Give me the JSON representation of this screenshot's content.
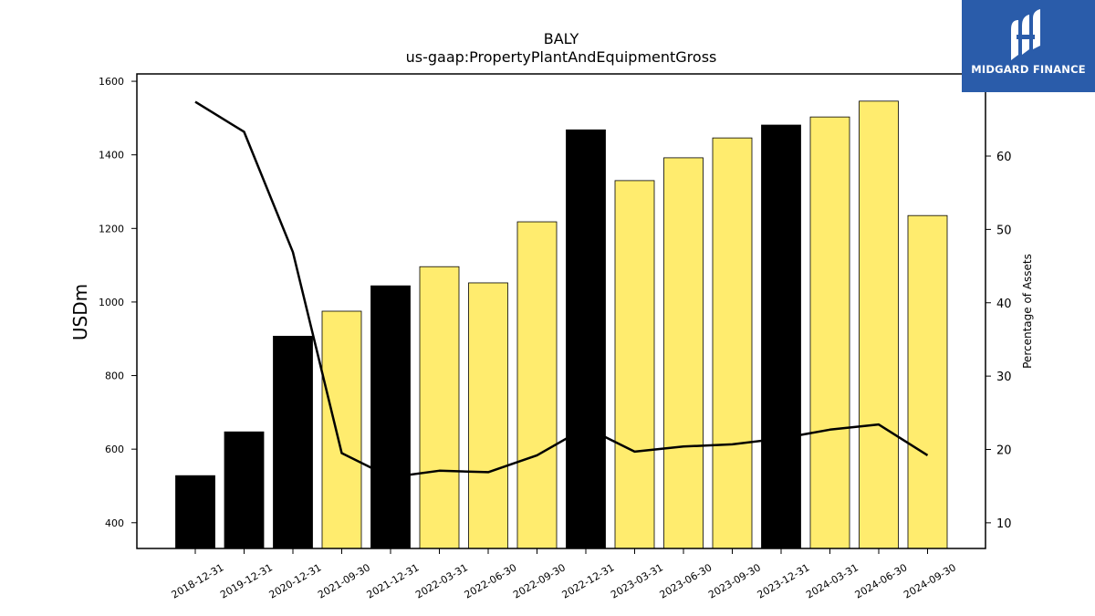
{
  "chart_data": {
    "type": "bar",
    "title": "BALY",
    "subtitle": "us-gaap:PropertyPlantAndEquipmentGross",
    "ylabel": "USDm",
    "y2label": "Percentage of Assets",
    "categories": [
      "2018-12-31",
      "2019-12-31",
      "2020-12-31",
      "2021-09-30",
      "2021-12-31",
      "2022-03-31",
      "2022-06-30",
      "2022-09-30",
      "2022-12-31",
      "2023-03-31",
      "2023-06-30",
      "2023-09-30",
      "2023-12-31",
      "2024-03-31",
      "2024-06-30",
      "2024-09-30"
    ],
    "series": [
      {
        "values": [
          528,
          647,
          907,
          975,
          1044,
          1096,
          1052,
          1218,
          1468,
          1330,
          1392,
          1446,
          1481,
          1503,
          1546,
          1235
        ]
      },
      {
        "axis": "right",
        "values": [
          67.4,
          63.3,
          46.9,
          19.5,
          16.2,
          17.1,
          16.9,
          19.2,
          23.0,
          19.7,
          20.4,
          20.7,
          21.5,
          22.7,
          23.4,
          19.2
        ]
      }
    ],
    "bar_colors": [
      "#000000",
      "#000000",
      "#000000",
      "#ffec6e",
      "#000000",
      "#ffec6e",
      "#ffec6e",
      "#ffec6e",
      "#000000",
      "#ffec6e",
      "#ffec6e",
      "#ffec6e",
      "#000000",
      "#ffec6e",
      "#ffec6e",
      "#ffec6e"
    ],
    "ylim": [
      330,
      1620
    ],
    "y2lim": [
      6.5,
      71.2
    ],
    "yticks": [
      400,
      600,
      800,
      1000,
      1200,
      1400,
      1600
    ],
    "y2ticks": [
      10,
      20,
      30,
      40,
      50,
      60
    ],
    "grid": false
  },
  "logo": {
    "text": "MIDGARD FINANCE",
    "color": "#2a5caa"
  }
}
